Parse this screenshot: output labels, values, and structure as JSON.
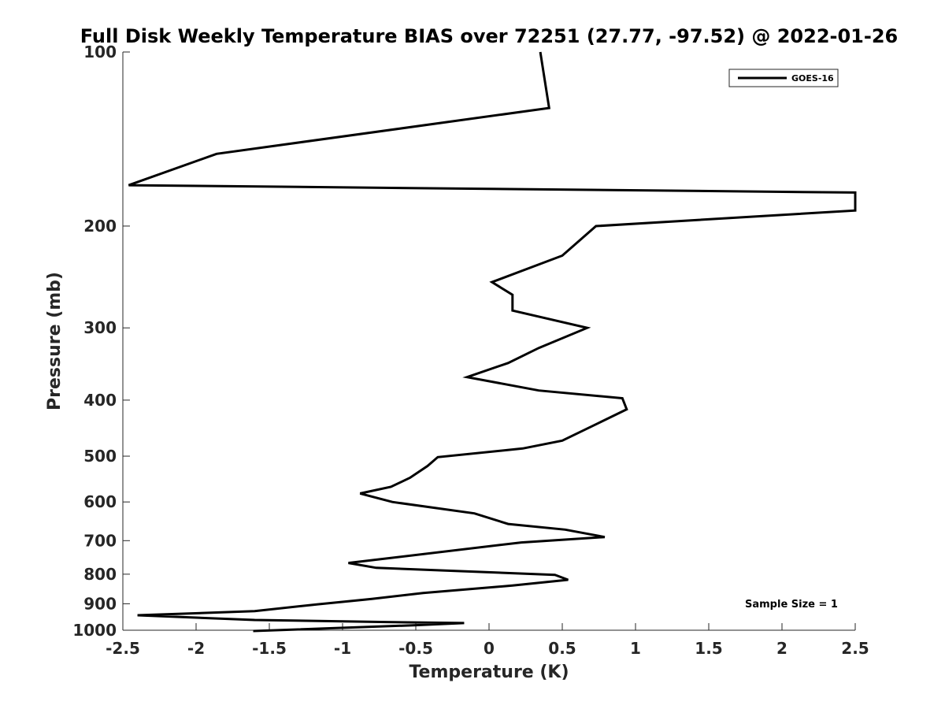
{
  "chart_data": {
    "type": "line",
    "title": "Full Disk Weekly Temperature BIAS over 72251 (27.77, -97.52) @ 2022-01-26",
    "xlabel": "Temperature (K)",
    "ylabel": "Pressure (mb)",
    "xlim": [
      -2.5,
      2.5
    ],
    "ylim": [
      100,
      1000
    ],
    "y_scale": "log",
    "y_reversed": true,
    "grid": false,
    "x_ticks": [
      -2.5,
      -2,
      -1.5,
      -1,
      -0.5,
      0,
      0.5,
      1,
      1.5,
      2,
      2.5
    ],
    "x_tick_labels": [
      "-2.5",
      "-2",
      "-1.5",
      "-1",
      "-0.5",
      "0",
      "0.5",
      "1",
      "1.5",
      "2",
      "2.5"
    ],
    "y_ticks": [
      100,
      200,
      300,
      400,
      500,
      600,
      700,
      800,
      900,
      1000
    ],
    "y_tick_labels": [
      "100",
      "200",
      "300",
      "400",
      "500",
      "600",
      "700",
      "800",
      "900",
      "1000"
    ],
    "legend": {
      "placement": "top-right",
      "entries": [
        "GOES-16"
      ]
    },
    "annotation": "Sample Size = 1",
    "series": [
      {
        "name": "GOES-16",
        "color": "#000000",
        "points": [
          [
            0.35,
            100
          ],
          [
            0.41,
            125
          ],
          [
            -1.86,
            150
          ],
          [
            -2.46,
            170
          ],
          [
            2.5,
            175
          ],
          [
            2.5,
            188
          ],
          [
            0.73,
            200
          ],
          [
            0.5,
            225
          ],
          [
            0.02,
            250
          ],
          [
            0.16,
            263
          ],
          [
            0.16,
            280
          ],
          [
            0.67,
            300
          ],
          [
            0.34,
            325
          ],
          [
            0.13,
            345
          ],
          [
            -0.15,
            365
          ],
          [
            0.34,
            385
          ],
          [
            0.91,
            397
          ],
          [
            0.94,
            415
          ],
          [
            0.75,
            438
          ],
          [
            0.5,
            470
          ],
          [
            0.23,
            485
          ],
          [
            -0.35,
            502
          ],
          [
            -0.42,
            520
          ],
          [
            -0.54,
            545
          ],
          [
            -0.67,
            565
          ],
          [
            -0.88,
            580
          ],
          [
            -0.66,
            600
          ],
          [
            -0.1,
            628
          ],
          [
            0.13,
            655
          ],
          [
            0.52,
            670
          ],
          [
            0.79,
            690
          ],
          [
            0.22,
            705
          ],
          [
            -0.96,
            765
          ],
          [
            -0.77,
            780
          ],
          [
            0.45,
            802
          ],
          [
            0.54,
            818
          ],
          [
            0.16,
            837
          ],
          [
            -0.45,
            862
          ],
          [
            -0.8,
            883
          ],
          [
            -1.17,
            902
          ],
          [
            -1.6,
            927
          ],
          [
            -2.4,
            942
          ],
          [
            -1.6,
            960
          ],
          [
            -0.7,
            968
          ],
          [
            -0.17,
            972
          ],
          [
            -0.5,
            980
          ],
          [
            -1.61,
            1003
          ]
        ]
      }
    ]
  }
}
